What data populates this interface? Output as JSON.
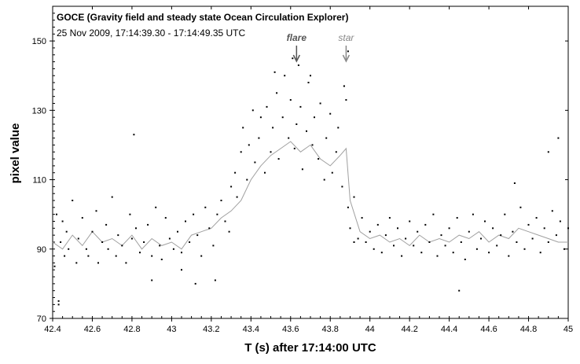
{
  "chart_data": {
    "type": "scatter",
    "title": "GOCE (Gravity field and steady state Ocean Circulation Explorer)",
    "subtitle": "25 Nov 2009, 17:14:39.30 - 17:14:49.35 UTC",
    "xlabel": "T (s) after 17:14:00 UTC",
    "ylabel": "pixel value",
    "xlim": [
      42.4,
      45
    ],
    "ylim": [
      70,
      160
    ],
    "x_ticks": [
      "42.4",
      "42.6",
      "42.8",
      "43",
      "43.2",
      "43.4",
      "43.6",
      "43.8",
      "44",
      "44.2",
      "44.4",
      "44.6",
      "44.8",
      "45"
    ],
    "y_ticks": [
      "70",
      "90",
      "110",
      "130",
      "150"
    ],
    "grid": false,
    "annotations": [
      {
        "text": "flare",
        "x": 43.63,
        "y": 148,
        "color": "#555555"
      },
      {
        "text": "star",
        "x": 43.88,
        "y": 148,
        "color": "#888888"
      }
    ],
    "series": [
      {
        "kind": "points",
        "color": "#000000",
        "x": [
          42.41,
          42.42,
          42.43,
          42.44,
          42.45,
          42.46,
          42.47,
          42.48,
          42.5,
          42.52,
          42.53,
          42.55,
          42.57,
          42.58,
          42.6,
          42.62,
          42.63,
          42.65,
          42.67,
          42.68,
          42.7,
          42.72,
          42.73,
          42.75,
          42.77,
          42.79,
          42.8,
          42.82,
          42.84,
          42.86,
          42.88,
          42.9,
          42.92,
          42.94,
          42.95,
          42.97,
          42.99,
          43.01,
          43.03,
          43.05,
          43.07,
          43.09,
          43.11,
          43.13,
          43.15,
          43.17,
          43.19,
          43.21,
          43.23,
          43.25,
          43.27,
          43.29,
          43.3,
          43.32,
          43.33,
          43.35,
          43.36,
          43.38,
          43.39,
          43.41,
          43.42,
          43.44,
          43.45,
          43.47,
          43.48,
          43.5,
          43.51,
          43.53,
          43.54,
          43.56,
          43.57,
          43.59,
          43.6,
          43.62,
          43.63,
          43.65,
          43.66,
          43.68,
          43.69,
          43.71,
          43.72,
          43.74,
          43.75,
          43.77,
          43.78,
          43.8,
          43.81,
          43.83,
          43.84,
          43.86,
          43.87,
          43.88,
          43.89,
          43.9,
          43.92,
          43.94,
          43.96,
          43.98,
          44.0,
          44.02,
          44.04,
          44.06,
          44.08,
          44.1,
          44.12,
          44.14,
          44.16,
          44.18,
          44.2,
          44.22,
          44.24,
          44.26,
          44.28,
          44.3,
          44.32,
          44.34,
          44.36,
          44.38,
          44.4,
          44.42,
          44.44,
          44.46,
          44.48,
          44.5,
          44.52,
          44.54,
          44.56,
          44.58,
          44.6,
          44.62,
          44.64,
          44.66,
          44.68,
          44.7,
          44.72,
          44.74,
          44.76,
          44.78,
          44.8,
          44.82,
          44.84,
          44.86,
          44.88,
          44.9,
          44.92,
          44.94,
          44.96,
          44.98,
          45.0,
          42.81,
          42.9,
          43.05,
          43.12,
          43.61,
          43.64,
          43.52,
          43.7,
          43.89,
          43.87,
          44.45,
          44.95,
          44.9,
          42.43,
          43.22,
          43.92,
          44.73
        ],
        "y": [
          85,
          100,
          75,
          92,
          98,
          88,
          95,
          90,
          104,
          86,
          93,
          99,
          90,
          88,
          95,
          101,
          86,
          92,
          97,
          90,
          105,
          88,
          94,
          91,
          86,
          100,
          93,
          96,
          89,
          92,
          97,
          88,
          102,
          91,
          87,
          99,
          93,
          90,
          95,
          89,
          98,
          92,
          100,
          94,
          88,
          102,
          96,
          91,
          100,
          104,
          98,
          95,
          108,
          112,
          105,
          118,
          125,
          110,
          120,
          130,
          115,
          122,
          128,
          112,
          131,
          118,
          125,
          135,
          116,
          128,
          140,
          122,
          133,
          119,
          126,
          131,
          113,
          124,
          138,
          120,
          128,
          116,
          132,
          110,
          122,
          129,
          112,
          118,
          125,
          108,
          137,
          133,
          102,
          96,
          105,
          93,
          99,
          92,
          95,
          90,
          97,
          89,
          94,
          99,
          91,
          96,
          88,
          93,
          98,
          91,
          95,
          89,
          97,
          92,
          100,
          88,
          94,
          91,
          96,
          89,
          99,
          92,
          87,
          95,
          100,
          90,
          93,
          98,
          89,
          96,
          91,
          94,
          100,
          88,
          95,
          92,
          102,
          90,
          97,
          93,
          99,
          89,
          96,
          92,
          101,
          94,
          98,
          90,
          96,
          123,
          81,
          84,
          80,
          145,
          143,
          141,
          140,
          147,
          137,
          78,
          122,
          118,
          74,
          81,
          92,
          109
        ]
      },
      {
        "kind": "line",
        "color": "#a0a0a0",
        "x": [
          42.4,
          42.45,
          42.5,
          42.55,
          42.6,
          42.65,
          42.7,
          42.75,
          42.8,
          42.85,
          42.9,
          42.95,
          43.0,
          43.05,
          43.1,
          43.15,
          43.2,
          43.25,
          43.3,
          43.35,
          43.4,
          43.45,
          43.5,
          43.55,
          43.6,
          43.65,
          43.7,
          43.75,
          43.8,
          43.85,
          43.88,
          43.9,
          43.95,
          44.0,
          44.05,
          44.1,
          44.15,
          44.2,
          44.25,
          44.3,
          44.35,
          44.4,
          44.45,
          44.5,
          44.55,
          44.6,
          44.65,
          44.7,
          44.75,
          44.8,
          44.85,
          44.9,
          44.95,
          45.0
        ],
        "y": [
          92,
          90,
          94,
          91,
          95,
          92,
          93,
          91,
          94,
          90,
          93,
          91,
          92,
          90,
          94,
          95,
          96,
          99,
          101,
          104,
          110,
          114,
          117,
          119,
          121,
          118,
          120,
          116,
          114,
          117,
          119,
          104,
          95,
          93,
          94,
          92,
          93,
          91,
          94,
          92,
          93,
          92,
          94,
          93,
          95,
          92,
          94,
          93,
          96,
          95,
          94,
          93,
          92,
          92
        ]
      }
    ]
  }
}
